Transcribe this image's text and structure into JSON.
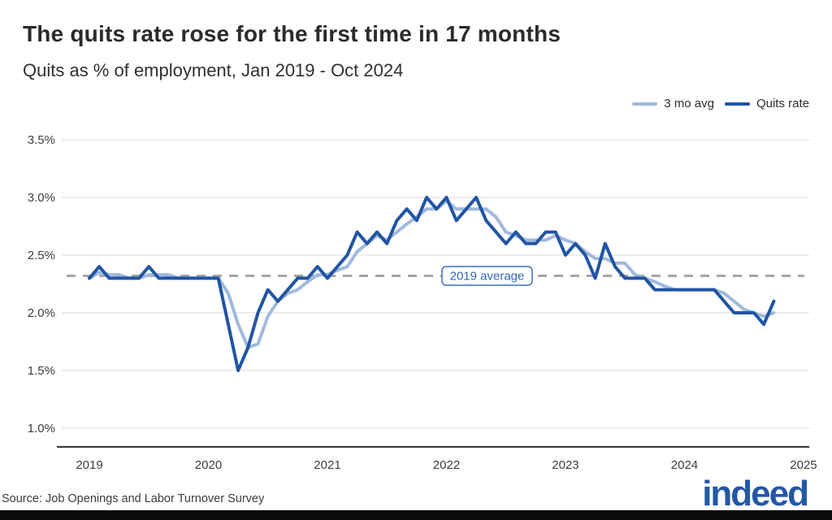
{
  "title": "The quits rate rose for the first time in 17 months",
  "subtitle": "Quits as % of employment, Jan 2019 - Oct 2024",
  "source": "Source: Job Openings and Labor Turnover Survey",
  "logo_text": "indeed",
  "legend": [
    {
      "label": "3 mo avg",
      "color": "#a0b9dd"
    },
    {
      "label": "Quits rate",
      "color": "#2155a3"
    }
  ],
  "annotation": {
    "label": "2019 average",
    "value": 2.32
  },
  "colors": {
    "quits_line": "#2155a3",
    "avg_line": "#a0b9dd",
    "gridline": "#e3e3e3",
    "axis": "#3d3d3d",
    "dashed_reference": "#a6a6a6",
    "annotation_border": "#4a79cb",
    "annotation_text": "#3565b8",
    "logo_blue": "#2457a7",
    "footer_bar": "#0b0b0d"
  },
  "chart_data": {
    "type": "line",
    "title": "The quits rate rose for the first time in 17 months",
    "subtitle": "Quits as % of employment, Jan 2019 - Oct 2024",
    "x_ticks": [
      "2019",
      "2020",
      "2021",
      "2022",
      "2023",
      "2024",
      "2025"
    ],
    "y_ticks": [
      "3.5%",
      "3.0%",
      "2.5%",
      "2.0%",
      "1.5%",
      "1.0%"
    ],
    "y_tick_values": [
      3.5,
      3.0,
      2.5,
      2.0,
      1.5,
      1.0
    ],
    "ylim": [
      1.0,
      3.5
    ],
    "x_start": "Jan 2019",
    "x_end": "Oct 2024",
    "grid": "horizontal",
    "legend_position": "top-right",
    "reference_line": {
      "label": "2019 average",
      "value": 2.32,
      "style": "dashed"
    },
    "series": [
      {
        "name": "3 mo avg",
        "color": "#a0b9dd",
        "values": [
          2.3,
          2.35,
          2.33,
          2.33,
          2.3,
          2.3,
          2.33,
          2.33,
          2.33,
          2.3,
          2.3,
          2.3,
          2.3,
          2.3,
          2.17,
          1.9,
          1.7,
          1.73,
          1.97,
          2.1,
          2.17,
          2.2,
          2.27,
          2.33,
          2.33,
          2.37,
          2.4,
          2.53,
          2.6,
          2.67,
          2.63,
          2.7,
          2.77,
          2.83,
          2.9,
          2.9,
          2.97,
          2.9,
          2.9,
          2.9,
          2.9,
          2.83,
          2.7,
          2.67,
          2.63,
          2.63,
          2.63,
          2.67,
          2.63,
          2.6,
          2.53,
          2.47,
          2.47,
          2.43,
          2.43,
          2.33,
          2.3,
          2.27,
          2.23,
          2.2,
          2.2,
          2.2,
          2.2,
          2.2,
          2.17,
          2.1,
          2.03,
          2.0,
          1.97,
          2.0
        ]
      },
      {
        "name": "Quits rate",
        "color": "#2155a3",
        "values": [
          2.3,
          2.4,
          2.3,
          2.3,
          2.3,
          2.3,
          2.4,
          2.3,
          2.3,
          2.3,
          2.3,
          2.3,
          2.3,
          2.3,
          1.9,
          1.5,
          1.7,
          2.0,
          2.2,
          2.1,
          2.2,
          2.3,
          2.3,
          2.4,
          2.3,
          2.4,
          2.5,
          2.7,
          2.6,
          2.7,
          2.6,
          2.8,
          2.9,
          2.8,
          3.0,
          2.9,
          3.0,
          2.8,
          2.9,
          3.0,
          2.8,
          2.7,
          2.6,
          2.7,
          2.6,
          2.6,
          2.7,
          2.7,
          2.5,
          2.6,
          2.5,
          2.3,
          2.6,
          2.4,
          2.3,
          2.3,
          2.3,
          2.2,
          2.2,
          2.2,
          2.2,
          2.2,
          2.2,
          2.2,
          2.1,
          2.0,
          2.0,
          2.0,
          1.9,
          2.1
        ]
      }
    ]
  }
}
